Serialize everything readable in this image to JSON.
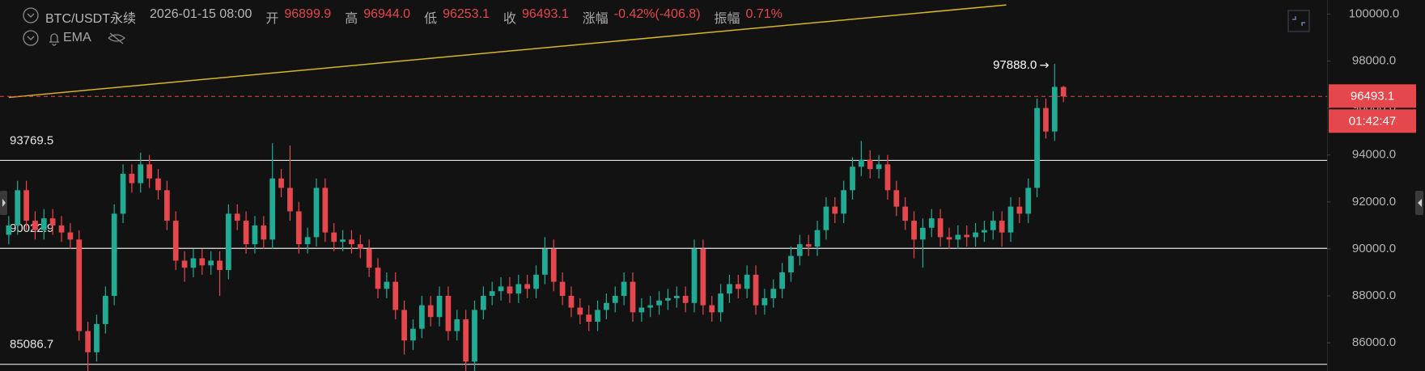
{
  "header": {
    "symbol": "BTC/USDT永续",
    "time": "2026-01-15 08:00",
    "open_label": "开",
    "open": "96899.9",
    "high_label": "高",
    "high": "96944.0",
    "low_label": "低",
    "low": "96253.1",
    "close_label": "收",
    "close": "96493.1",
    "change_label": "涨幅",
    "change": "-0.42%(-406.8)",
    "amplitude_label": "振幅",
    "amplitude": "0.71%",
    "indicator": "EMA"
  },
  "chart_data": {
    "type": "candlestick",
    "up_color": "#22ab94",
    "down_color": "#e5474d",
    "x": [
      0,
      1,
      2,
      3,
      4,
      5,
      6,
      7,
      8,
      9,
      10,
      11,
      12,
      13,
      14,
      15,
      16,
      17,
      18,
      19,
      20,
      21,
      22,
      23,
      24,
      25,
      26,
      27,
      28,
      29,
      30,
      31,
      32,
      33,
      34,
      35,
      36,
      37,
      38,
      39,
      40,
      41,
      42,
      43,
      44,
      45,
      46,
      47,
      48,
      49,
      50,
      51,
      52,
      53,
      54,
      55,
      56,
      57,
      58,
      59,
      60,
      61,
      62,
      63,
      64,
      65,
      66,
      67,
      68,
      69,
      70,
      71,
      72,
      73,
      74,
      75,
      76,
      77,
      78,
      79,
      80,
      81,
      82,
      83,
      84,
      85,
      86,
      87,
      88,
      89,
      90,
      91,
      92,
      93,
      94,
      95,
      96,
      97,
      98,
      99,
      100,
      101,
      102,
      103,
      104,
      105,
      106,
      107,
      108,
      109,
      110,
      111,
      112,
      113,
      114,
      115,
      116,
      117,
      118,
      119,
      120
    ],
    "open": [
      90600,
      91000,
      92500,
      91200,
      90800,
      91300,
      91000,
      90700,
      90400,
      86500,
      85600,
      86800,
      88000,
      91500,
      93200,
      92800,
      93600,
      93000,
      92500,
      91200,
      89500,
      89200,
      89600,
      89300,
      89500,
      89100,
      91500,
      91200,
      90200,
      91000,
      90400,
      93000,
      92600,
      91600,
      90200,
      90500,
      92600,
      90700,
      90300,
      90400,
      90200,
      90000,
      89200,
      88300,
      88600,
      87400,
      86100,
      86600,
      87600,
      87100,
      88000,
      86500,
      87000,
      85200,
      87400,
      88000,
      88200,
      88400,
      88100,
      88500,
      88300,
      88900,
      90000,
      88600,
      88000,
      87500,
      87200,
      86900,
      87400,
      87700,
      88000,
      88600,
      87300,
      87500,
      87600,
      87800,
      87900,
      88000,
      87700,
      90000,
      87600,
      87300,
      88100,
      88500,
      88300,
      88900,
      87600,
      87900,
      88300,
      89000,
      89700,
      90200,
      90100,
      90800,
      91800,
      91500,
      92500,
      93500,
      93800,
      93400,
      93600,
      92500,
      91800,
      91200,
      90400,
      90900,
      91300,
      90500,
      90400,
      90600,
      90500,
      90700,
      90800,
      91200,
      90700,
      91800,
      91500,
      92600,
      96000,
      95000,
      96899.9
    ],
    "high": [
      91400,
      92900,
      92900,
      91600,
      91700,
      91700,
      91400,
      91100,
      90800,
      86900,
      87200,
      88400,
      91900,
      93600,
      93600,
      94100,
      94000,
      93400,
      92900,
      91600,
      89900,
      90000,
      90000,
      89900,
      89900,
      91900,
      91900,
      91600,
      91400,
      91400,
      94500,
      93400,
      94400,
      92000,
      90900,
      93000,
      93000,
      91100,
      90800,
      90800,
      90600,
      90400,
      89600,
      89000,
      89000,
      87800,
      87000,
      88000,
      88000,
      88400,
      88400,
      87400,
      87400,
      87800,
      88400,
      88600,
      88800,
      88800,
      88900,
      88900,
      89300,
      90500,
      90400,
      89000,
      88400,
      87900,
      87600,
      87800,
      88100,
      88400,
      89000,
      89000,
      87900,
      88000,
      88200,
      88300,
      88400,
      88400,
      90400,
      90400,
      88000,
      88500,
      88900,
      88900,
      89300,
      89300,
      88300,
      88700,
      89400,
      90100,
      90600,
      90600,
      91200,
      92200,
      92200,
      92900,
      93900,
      94600,
      94200,
      94000,
      94000,
      92900,
      92200,
      91600,
      91300,
      91700,
      91700,
      90900,
      91000,
      91000,
      91100,
      91200,
      91600,
      91600,
      92200,
      92200,
      93000,
      96400,
      96400,
      97888,
      96944
    ],
    "low": [
      90200,
      90600,
      90800,
      90400,
      90400,
      90600,
      90300,
      90000,
      86100,
      84800,
      85200,
      86400,
      87600,
      91100,
      92400,
      92400,
      92600,
      92100,
      90800,
      89100,
      88600,
      88800,
      88900,
      88900,
      88000,
      88700,
      90800,
      89800,
      89800,
      90000,
      90000,
      92200,
      91200,
      89800,
      89800,
      90100,
      90300,
      89900,
      89900,
      89800,
      89600,
      88800,
      87900,
      87900,
      87000,
      85500,
      85700,
      86200,
      86700,
      86700,
      86100,
      86100,
      84800,
      84800,
      87000,
      87600,
      87800,
      87700,
      87700,
      87900,
      87900,
      88500,
      88200,
      87600,
      87100,
      86800,
      86500,
      86500,
      87000,
      87300,
      87600,
      86900,
      86900,
      87100,
      87200,
      87400,
      87500,
      87300,
      87300,
      87200,
      86900,
      86900,
      87700,
      87900,
      87900,
      87200,
      87200,
      87500,
      87900,
      88600,
      89300,
      89700,
      89700,
      90400,
      91100,
      91100,
      92100,
      93100,
      93000,
      93000,
      92100,
      91400,
      90800,
      89600,
      89200,
      90500,
      90100,
      90000,
      90000,
      90100,
      90100,
      90300,
      90400,
      90100,
      90300,
      91100,
      91100,
      92200,
      94700,
      94600,
      96253.1
    ],
    "close": [
      91000,
      92500,
      91200,
      90800,
      91300,
      91000,
      90700,
      90400,
      86500,
      85600,
      86800,
      88000,
      91500,
      93200,
      92800,
      93600,
      93000,
      92500,
      91200,
      89500,
      89200,
      89600,
      89300,
      89500,
      89100,
      91500,
      91200,
      90200,
      91000,
      90400,
      93000,
      92600,
      91600,
      90200,
      90500,
      92600,
      90700,
      90300,
      90400,
      90200,
      90000,
      89200,
      88300,
      88600,
      87400,
      86100,
      86600,
      87600,
      87100,
      88000,
      86500,
      87000,
      85200,
      87400,
      88000,
      88200,
      88400,
      88100,
      88500,
      88300,
      88900,
      90000,
      88600,
      88000,
      87500,
      87200,
      86900,
      87400,
      87700,
      88000,
      88600,
      87300,
      87500,
      87600,
      87800,
      87900,
      88000,
      87700,
      90000,
      87600,
      87300,
      88100,
      88500,
      88300,
      88900,
      87600,
      87900,
      88300,
      89000,
      89700,
      90200,
      90100,
      90800,
      91800,
      91500,
      92500,
      93500,
      93800,
      93400,
      93600,
      92500,
      91800,
      91200,
      90400,
      90900,
      91300,
      90500,
      90400,
      90600,
      90500,
      90700,
      90800,
      91200,
      90700,
      91800,
      91500,
      92600,
      96000,
      95000,
      96899.9,
      96493.1
    ],
    "xlim": [
      -1,
      150
    ],
    "ylim": [
      84800,
      100600
    ],
    "yticks": [
      {
        "value": 86000,
        "label": "86000.0"
      },
      {
        "value": 88000,
        "label": "88000.0"
      },
      {
        "value": 90000,
        "label": "90000.0"
      },
      {
        "value": 92000,
        "label": "92000.0"
      },
      {
        "value": 94000,
        "label": "94000.0"
      },
      {
        "value": 96000,
        "label": "96000.0"
      },
      {
        "value": 98000,
        "label": "98000.0"
      },
      {
        "value": 100000,
        "label": "100000.0"
      }
    ],
    "levels": [
      93769.5,
      90022.9,
      85086.7
    ],
    "trend_line": {
      "x": [
        0,
        113.5
      ],
      "values": [
        96450,
        100390
      ],
      "color": "#d9b520"
    },
    "last_price": 96493.1,
    "countdown": "01:42:47",
    "high_marker": {
      "x": 119,
      "value": 97888,
      "label": "97888.0"
    }
  }
}
